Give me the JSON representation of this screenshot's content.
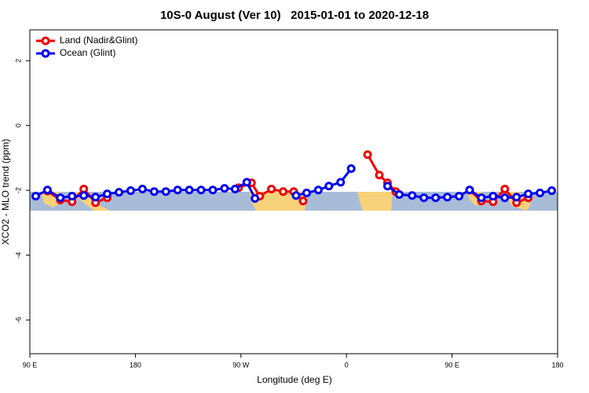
{
  "chart_data": {
    "type": "line",
    "title": "10S-0 August (Ver 10)   2015-01-01 to 2020-12-18",
    "xlabel": "Longitude (deg E)",
    "ylabel": "XCO2 - MLO trend (ppm)",
    "xlim": [
      90,
      540
    ],
    "ylim": [
      -7.04,
      2.95
    ],
    "xticks": [
      {
        "value": 90,
        "label": "90 E"
      },
      {
        "value": 180,
        "label": "180"
      },
      {
        "value": 270,
        "label": "90 W"
      },
      {
        "value": 360,
        "label": "0"
      },
      {
        "value": 450,
        "label": "90 E"
      },
      {
        "value": 540,
        "label": "180"
      }
    ],
    "yticks": [
      2,
      0,
      -2,
      -4,
      -6
    ],
    "legend": "upper left",
    "series": [
      {
        "name": "Land (Nadir&Glint)",
        "color": "#ee0000",
        "x": [
          105,
          116,
          126,
          136,
          146,
          156,
          200,
          268,
          279,
          286,
          296,
          306,
          315,
          323,
          340,
          378,
          388,
          395,
          402,
          450,
          465,
          475,
          485,
          495,
          505,
          515
        ],
        "values": [
          -2.02,
          -2.3,
          -2.35,
          -1.96,
          -2.38,
          -2.23,
          null,
          -1.92,
          -1.77,
          -2.18,
          -1.96,
          -2.04,
          -2.04,
          -2.33,
          null,
          -0.9,
          -1.53,
          -1.77,
          -2.04,
          null,
          -1.99,
          -2.33,
          -2.35,
          -1.96,
          -2.38,
          -2.23
        ]
      },
      {
        "name": "Ocean (Glint)",
        "color": "#0000ee",
        "x": [
          95,
          105,
          116,
          126,
          136,
          146,
          156,
          166,
          176,
          186,
          196,
          206,
          216,
          226,
          236,
          246,
          256,
          265,
          275,
          282,
          300,
          317,
          326,
          336,
          345,
          355,
          364,
          380,
          395,
          405,
          416,
          426,
          436,
          446,
          456,
          465,
          475,
          485,
          495,
          505,
          515,
          525,
          535
        ],
        "values": [
          -2.18,
          -1.99,
          -2.23,
          -2.18,
          -2.16,
          -2.21,
          -2.11,
          -2.06,
          -2.01,
          -1.96,
          -2.04,
          -2.04,
          -1.99,
          -1.99,
          -1.99,
          -1.99,
          -1.94,
          -1.96,
          -1.75,
          -2.25,
          null,
          -2.16,
          -2.08,
          -1.99,
          -1.87,
          -1.75,
          -1.33,
          null,
          -1.87,
          -2.13,
          -2.16,
          -2.23,
          -2.23,
          -2.21,
          -2.18,
          -1.99,
          -2.23,
          -2.18,
          -2.23,
          -2.21,
          -2.11,
          -2.08,
          -2.01
        ]
      }
    ]
  }
}
